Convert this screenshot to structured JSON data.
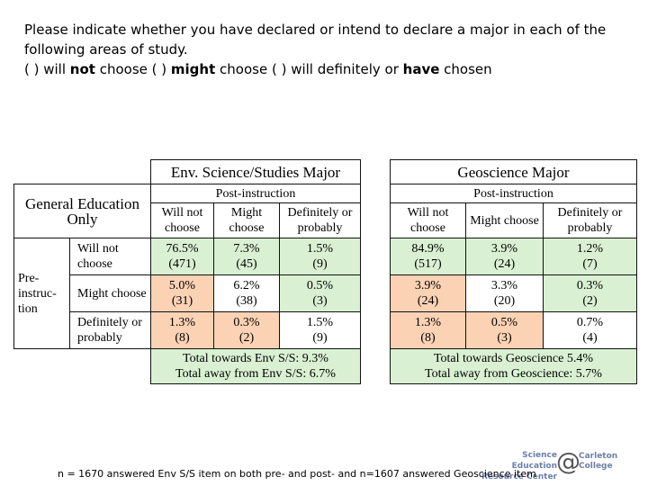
{
  "question": {
    "line1": "Please indicate whether you have declared or intend to declare a major in each of the",
    "line2": "following areas of study.",
    "opt1_pre": "(   ) will ",
    "opt1_bold": "not",
    "opt1_post": " choose",
    "opt2_pre": "(   ) ",
    "opt2_bold": "might",
    "opt2_post": " choose",
    "opt3_pre": "(   ) will definitely or ",
    "opt3_bold": "have",
    "opt3_post": " chosen"
  },
  "row_header": {
    "general": "General Education Only",
    "pre_instruction": "Pre-instruc-tion",
    "rows": [
      "Will not choose",
      "Might choose",
      "Definitely or probably"
    ]
  },
  "env_table": {
    "title": "Env. Science/Studies Major",
    "post_label": "Post-instruction",
    "cols": [
      "Will not choose",
      "Might choose",
      "Definitely or probably"
    ],
    "rows": [
      [
        {
          "pct": "76.5%",
          "n": "(471)"
        },
        {
          "pct": "7.3%",
          "n": "(45)"
        },
        {
          "pct": "1.5%",
          "n": "(9)"
        }
      ],
      [
        {
          "pct": "5.0%",
          "n": "(31)"
        },
        {
          "pct": "6.2%",
          "n": "(38)"
        },
        {
          "pct": "0.5%",
          "n": "(3)"
        }
      ],
      [
        {
          "pct": "1.3%",
          "n": "(8)"
        },
        {
          "pct": "0.3%",
          "n": "(2)"
        },
        {
          "pct": "1.5%",
          "n": "(9)"
        }
      ]
    ],
    "total_towards": "Total towards Env S/S: 9.3%",
    "total_away": "Total away from Env S/S: 6.7%"
  },
  "geo_table": {
    "title": "Geoscience Major",
    "post_label": "Post-instruction",
    "cols": [
      "Will not choose",
      "Might choose",
      "Definitely or probably"
    ],
    "rows": [
      [
        {
          "pct": "84.9%",
          "n": "(517)"
        },
        {
          "pct": "3.9%",
          "n": "(24)"
        },
        {
          "pct": "1.2%",
          "n": "(7)"
        }
      ],
      [
        {
          "pct": "3.9%",
          "n": "(24)"
        },
        {
          "pct": "3.3%",
          "n": "(20)"
        },
        {
          "pct": "0.3%",
          "n": "(2)"
        }
      ],
      [
        {
          "pct": "1.3%",
          "n": "(8)"
        },
        {
          "pct": "0.5%",
          "n": "(3)"
        },
        {
          "pct": "0.7%",
          "n": "(4)"
        }
      ]
    ],
    "total_towards": "Total towards Geoscience 5.4%",
    "total_away": "Total away from Geoscience: 5.7%"
  },
  "footnote": "n = 1670 answered Env S/S item on both pre- and post- and n=1607 answered Geoscience item",
  "logo": {
    "serc_line1": "Science Education",
    "serc_line2": "Resource Center",
    "at": "@",
    "carleton_line1": "Carleton",
    "carleton_line2": "College"
  },
  "colors": {
    "towards": "#d9f1d2",
    "away": "#fbd2b3",
    "neutral": "#ffffff"
  }
}
